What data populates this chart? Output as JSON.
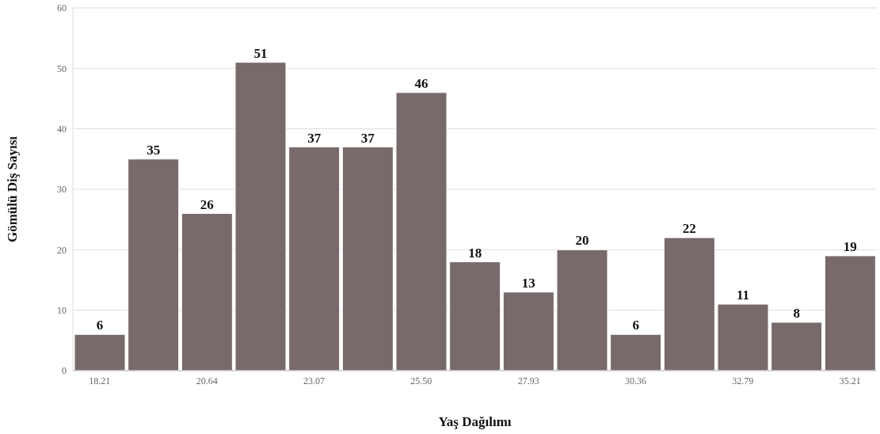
{
  "chart_data": {
    "type": "bar",
    "xlabel": "Yaş Dağılımı",
    "ylabel": "Gömülü Diş Sayısı",
    "categories": [
      "18.21",
      null,
      "20.64",
      null,
      "23.07",
      null,
      "25.50",
      null,
      "27.93",
      null,
      "30.36",
      null,
      "32.79",
      null,
      "35.21"
    ],
    "values": [
      6,
      35,
      26,
      51,
      37,
      37,
      46,
      18,
      13,
      20,
      6,
      22,
      11,
      8,
      19
    ],
    "color": "#786a6a",
    "ylim": [
      0,
      60
    ],
    "yticks": [
      0,
      10,
      20,
      30,
      40,
      50,
      60
    ],
    "grid": "y",
    "data_labels": true,
    "legend": false
  }
}
